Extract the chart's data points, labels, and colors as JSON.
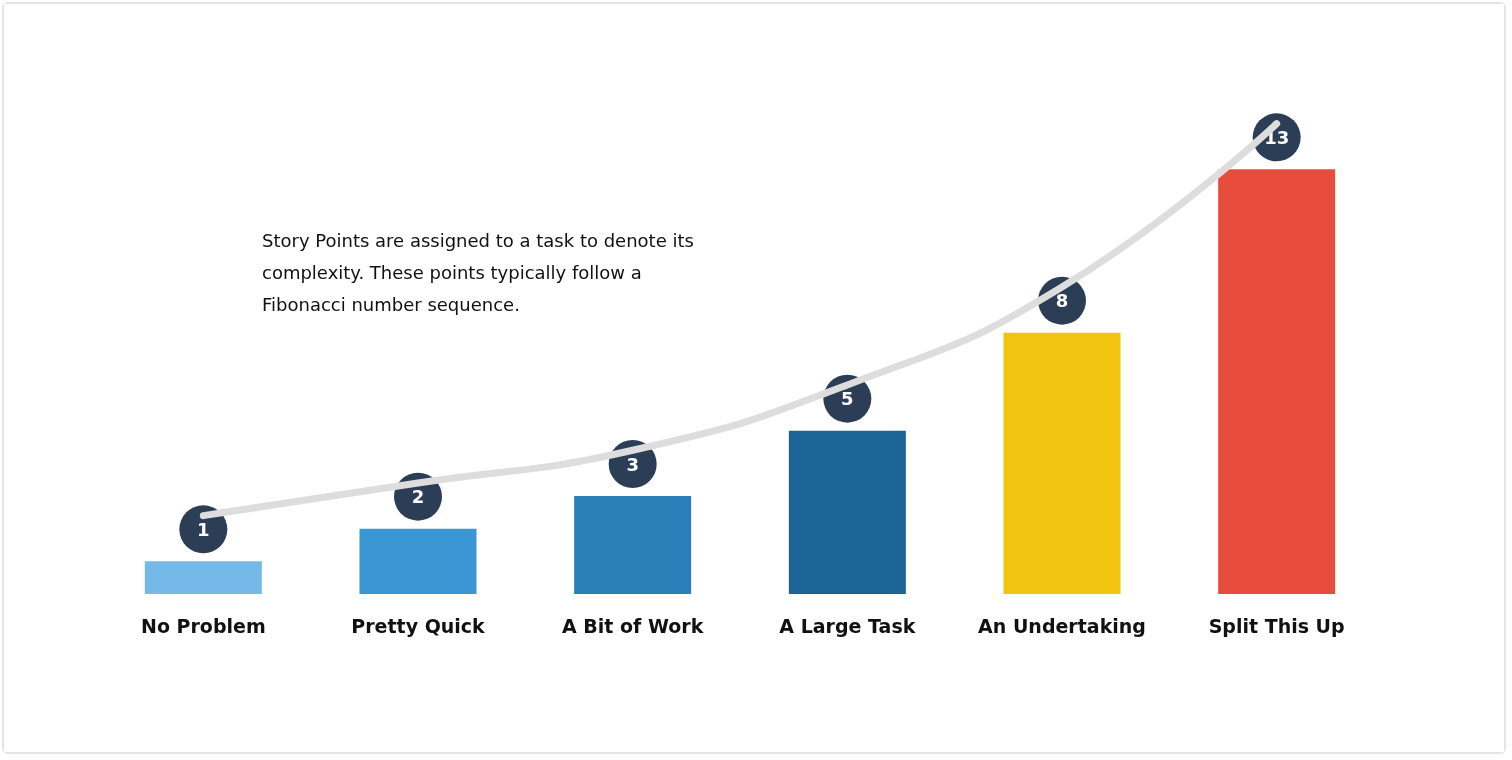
{
  "chart_data": {
    "type": "bar",
    "categories": [
      "No Problem",
      "Pretty Quick",
      "A Bit of Work",
      "A Large Task",
      "An Undertaking",
      "Split This Up"
    ],
    "values": [
      1,
      2,
      3,
      5,
      8,
      13
    ],
    "colors": [
      "#74b9e8",
      "#3a97d3",
      "#2a7fb8",
      "#1c6396",
      "#f1c40f",
      "#e74c3c"
    ],
    "value_labels": [
      "1",
      "2",
      "3",
      "5",
      "8",
      "13"
    ],
    "series": [
      {
        "type": "line",
        "color": "#dddddd",
        "values": [
          2.4,
          3.4,
          4.4,
          6.4,
          9.4,
          14.4
        ]
      }
    ],
    "annotations": [
      "Story Points are assigned to a task to denote its complexity. These points typically follow a Fibonacci number sequence."
    ]
  }
}
